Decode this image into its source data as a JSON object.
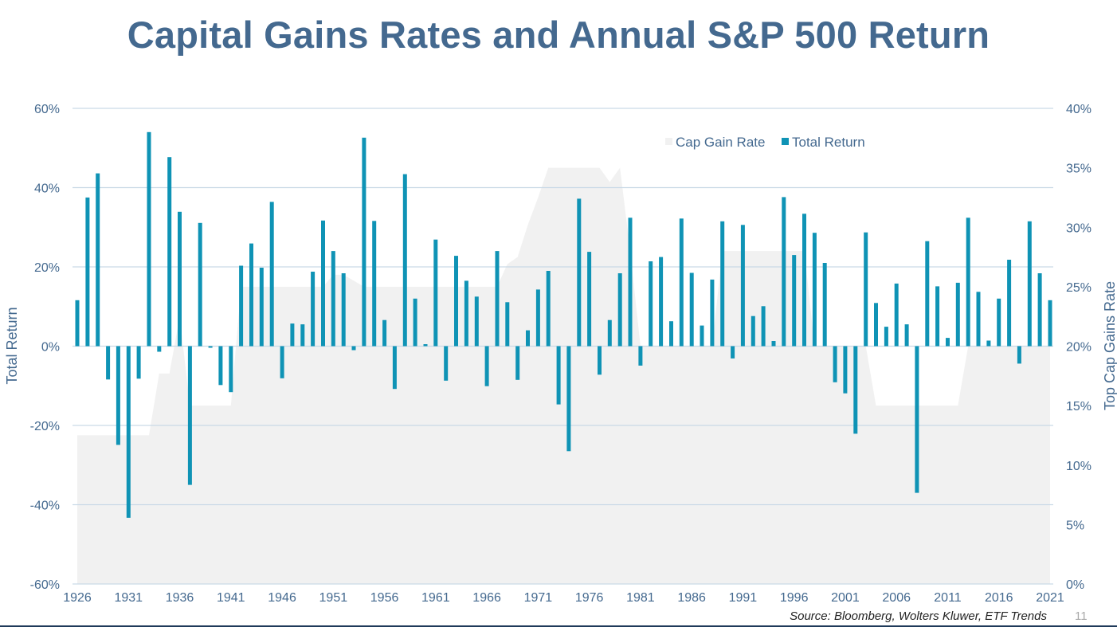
{
  "title": "Capital Gains Rates and Annual S&P 500 Return",
  "source": "Source: Bloomberg, Wolters Kluwer, ETF Trends",
  "page_number": "11",
  "colors": {
    "title": "#44698f",
    "bar": "#0f93b5",
    "area": "#f1f1f1",
    "grid": "#c9d9e6",
    "axis_text": "#44698f"
  },
  "chart_data": {
    "type": "bar",
    "combo": "bar + area (secondary axis)",
    "xlabel": "",
    "ylabel": "Total Return",
    "y2label": "Top Cap Gains Rate",
    "ylim": [
      -60,
      60
    ],
    "y2lim": [
      0,
      40
    ],
    "yticks": [
      "60%",
      "40%",
      "20%",
      "0%",
      "-20%",
      "-40%",
      "-60%"
    ],
    "y2ticks": [
      "40%",
      "35%",
      "30%",
      "25%",
      "20%",
      "15%",
      "10%",
      "5%",
      "0%"
    ],
    "xticks": [
      "1926",
      "1931",
      "1936",
      "1941",
      "1946",
      "1951",
      "1956",
      "1961",
      "1966",
      "1971",
      "1976",
      "1981",
      "1986",
      "1991",
      "1996",
      "2001",
      "2006",
      "2011",
      "2016",
      "2021"
    ],
    "legend_position": "top-right",
    "grid": "horizontal",
    "x": [
      1926,
      1927,
      1928,
      1929,
      1930,
      1931,
      1932,
      1933,
      1934,
      1935,
      1936,
      1937,
      1938,
      1939,
      1940,
      1941,
      1942,
      1943,
      1944,
      1945,
      1946,
      1947,
      1948,
      1949,
      1950,
      1951,
      1952,
      1953,
      1954,
      1955,
      1956,
      1957,
      1958,
      1959,
      1960,
      1961,
      1962,
      1963,
      1964,
      1965,
      1966,
      1967,
      1968,
      1969,
      1970,
      1971,
      1972,
      1973,
      1974,
      1975,
      1976,
      1977,
      1978,
      1979,
      1980,
      1981,
      1982,
      1983,
      1984,
      1985,
      1986,
      1987,
      1988,
      1989,
      1990,
      1991,
      1992,
      1993,
      1994,
      1995,
      1996,
      1997,
      1998,
      1999,
      2000,
      2001,
      2002,
      2003,
      2004,
      2005,
      2006,
      2007,
      2008,
      2009,
      2010,
      2011,
      2012,
      2013,
      2014,
      2015,
      2016,
      2017,
      2018,
      2019,
      2020,
      2021
    ],
    "series": [
      {
        "name": "Total Return",
        "kind": "bar",
        "axis": "left",
        "color": "#0f93b5",
        "values": [
          11.6,
          37.5,
          43.6,
          -8.4,
          -24.9,
          -43.3,
          -8.2,
          54.0,
          -1.4,
          47.7,
          33.9,
          -35.0,
          31.1,
          -0.4,
          -9.8,
          -11.6,
          20.3,
          25.9,
          19.8,
          36.4,
          -8.1,
          5.7,
          5.5,
          18.8,
          31.7,
          24.0,
          18.4,
          -1.0,
          52.6,
          31.6,
          6.6,
          -10.8,
          43.4,
          12.0,
          0.5,
          26.9,
          -8.7,
          22.8,
          16.5,
          12.5,
          -10.1,
          24.0,
          11.1,
          -8.5,
          4.0,
          14.3,
          19.0,
          -14.7,
          -26.5,
          37.2,
          23.8,
          -7.2,
          6.6,
          18.4,
          32.4,
          -4.9,
          21.4,
          22.5,
          6.3,
          32.2,
          18.5,
          5.2,
          16.8,
          31.5,
          -3.1,
          30.6,
          7.6,
          10.1,
          1.3,
          37.6,
          23.0,
          33.4,
          28.6,
          21.0,
          -9.1,
          -11.9,
          -22.1,
          28.7,
          10.9,
          4.9,
          15.8,
          5.5,
          -37.0,
          26.5,
          15.1,
          2.1,
          16.0,
          32.4,
          13.7,
          1.4,
          12.0,
          21.8,
          -4.4,
          31.5,
          18.4,
          11.6
        ]
      },
      {
        "name": "Cap Gain Rate",
        "kind": "area",
        "axis": "right",
        "color": "#f1f1f1",
        "values": [
          12.5,
          12.5,
          12.5,
          12.5,
          12.5,
          12.5,
          12.5,
          12.5,
          17.7,
          17.7,
          22.5,
          15,
          15,
          15,
          15,
          15,
          25,
          25,
          25,
          25,
          25,
          25,
          25,
          25,
          25,
          26,
          26,
          25.5,
          25,
          25,
          25,
          25,
          25,
          25,
          25,
          25,
          25,
          25,
          25,
          25,
          25,
          25,
          26.9,
          27.5,
          30.2,
          32.5,
          35,
          35,
          35,
          35,
          35,
          35,
          33.8,
          35,
          28,
          20,
          20,
          20,
          20,
          20,
          20,
          20,
          20,
          28,
          28,
          28,
          28,
          28,
          28,
          28,
          28,
          28,
          20,
          20,
          20,
          20,
          20,
          20,
          15,
          15,
          15,
          15,
          15,
          15,
          15,
          15,
          15,
          20,
          20,
          20,
          20,
          20,
          20,
          20,
          20,
          20
        ]
      }
    ]
  }
}
